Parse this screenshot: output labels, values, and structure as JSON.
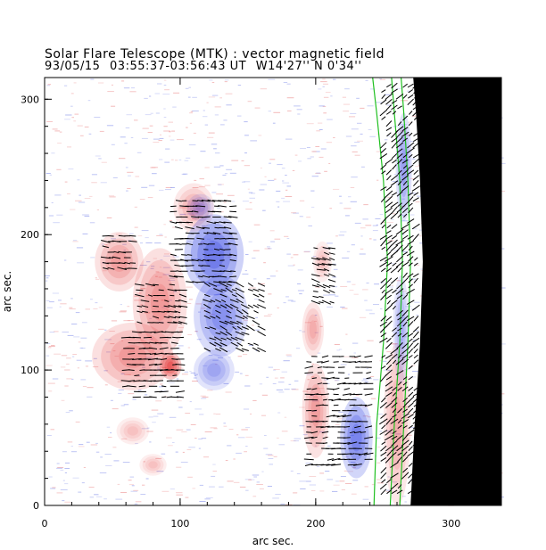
{
  "title_line1": "Solar Flare Telescope (MTK) : vector magnetic field",
  "title_line2": {
    "date": "93/05/15",
    "time_range": "03:55:37-03:56:43 UT",
    "position": "W14'27''  N 0'34''"
  },
  "axes": {
    "xlabel": "arc sec.",
    "ylabel": "arc sec.",
    "xlim": [
      0,
      337
    ],
    "ylim": [
      0,
      316
    ],
    "xticks": [
      0,
      100,
      200,
      300
    ],
    "yticks": [
      0,
      100,
      200,
      300
    ]
  },
  "colors": {
    "positive": "#e02020",
    "negative": "#2030e0",
    "limb_contour": "#20c020",
    "off_disk": "#000000",
    "vector": "#000000"
  },
  "regions": [
    {
      "polarity": "positive",
      "cx": 55,
      "cy": 180,
      "rx": 18,
      "ry": 22,
      "strength": 0.45
    },
    {
      "polarity": "positive",
      "cx": 85,
      "cy": 150,
      "rx": 20,
      "ry": 40,
      "strength": 0.5
    },
    {
      "polarity": "positive",
      "cx": 65,
      "cy": 110,
      "rx": 30,
      "ry": 25,
      "strength": 0.5
    },
    {
      "polarity": "positive",
      "cx": 93,
      "cy": 103,
      "rx": 8,
      "ry": 10,
      "strength": 0.9
    },
    {
      "polarity": "positive",
      "cx": 110,
      "cy": 220,
      "rx": 15,
      "ry": 18,
      "strength": 0.35
    },
    {
      "polarity": "positive",
      "cx": 65,
      "cy": 55,
      "rx": 12,
      "ry": 10,
      "strength": 0.3
    },
    {
      "polarity": "positive",
      "cx": 80,
      "cy": 30,
      "rx": 10,
      "ry": 8,
      "strength": 0.3
    },
    {
      "polarity": "positive",
      "cx": 200,
      "cy": 70,
      "rx": 10,
      "ry": 35,
      "strength": 0.45
    },
    {
      "polarity": "positive",
      "cx": 198,
      "cy": 130,
      "rx": 8,
      "ry": 20,
      "strength": 0.4
    },
    {
      "polarity": "positive",
      "cx": 205,
      "cy": 180,
      "rx": 7,
      "ry": 15,
      "strength": 0.3
    },
    {
      "polarity": "positive",
      "cx": 260,
      "cy": 60,
      "rx": 10,
      "ry": 60,
      "strength": 0.4
    },
    {
      "polarity": "negative",
      "cx": 125,
      "cy": 185,
      "rx": 22,
      "ry": 30,
      "strength": 0.8
    },
    {
      "polarity": "negative",
      "cx": 130,
      "cy": 140,
      "rx": 20,
      "ry": 30,
      "strength": 0.6
    },
    {
      "polarity": "negative",
      "cx": 125,
      "cy": 100,
      "rx": 15,
      "ry": 15,
      "strength": 0.45
    },
    {
      "polarity": "negative",
      "cx": 115,
      "cy": 220,
      "rx": 10,
      "ry": 10,
      "strength": 0.4
    },
    {
      "polarity": "negative",
      "cx": 230,
      "cy": 50,
      "rx": 12,
      "ry": 30,
      "strength": 0.7
    },
    {
      "polarity": "negative",
      "cx": 265,
      "cy": 250,
      "rx": 6,
      "ry": 40,
      "strength": 0.5
    },
    {
      "polarity": "negative",
      "cx": 263,
      "cy": 130,
      "rx": 6,
      "ry": 40,
      "strength": 0.4
    }
  ],
  "limb_contours": [
    {
      "name": "inner",
      "points": [
        [
          243,
          0
        ],
        [
          245,
          60
        ],
        [
          250,
          120
        ],
        [
          253,
          180
        ],
        [
          250,
          240
        ],
        [
          245,
          290
        ],
        [
          242,
          316
        ]
      ]
    },
    {
      "name": "middle",
      "points": [
        [
          255,
          0
        ],
        [
          258,
          60
        ],
        [
          262,
          120
        ],
        [
          264,
          180
        ],
        [
          262,
          240
        ],
        [
          258,
          290
        ],
        [
          256,
          316
        ]
      ]
    },
    {
      "name": "outer",
      "points": [
        [
          262,
          0
        ],
        [
          265,
          60
        ],
        [
          268,
          120
        ],
        [
          270,
          180
        ],
        [
          268,
          240
        ],
        [
          265,
          290
        ],
        [
          263,
          316
        ]
      ]
    }
  ],
  "off_disk_edge": [
    [
      270,
      0
    ],
    [
      273,
      60
    ],
    [
      277,
      120
    ],
    [
      279,
      180
    ],
    [
      277,
      240
    ],
    [
      274,
      290
    ],
    [
      272,
      316
    ]
  ],
  "vector_patches": [
    {
      "x0": 45,
      "x1": 65,
      "y0": 175,
      "y1": 200,
      "angle": -5
    },
    {
      "x0": 70,
      "x1": 105,
      "y0": 135,
      "y1": 165,
      "angle": -10
    },
    {
      "x0": 60,
      "x1": 100,
      "y0": 80,
      "y1": 130,
      "angle": 0
    },
    {
      "x0": 95,
      "x1": 140,
      "y0": 165,
      "y1": 225,
      "angle": -5
    },
    {
      "x0": 120,
      "x1": 160,
      "y0": 115,
      "y1": 165,
      "angle": -25
    },
    {
      "x0": 195,
      "x1": 240,
      "y0": 30,
      "y1": 110,
      "angle": 5
    },
    {
      "x0": 200,
      "x1": 215,
      "y0": 150,
      "y1": 190,
      "angle": -15
    },
    {
      "x0": 250,
      "x1": 275,
      "y0": 10,
      "y1": 310,
      "angle": 40
    }
  ]
}
